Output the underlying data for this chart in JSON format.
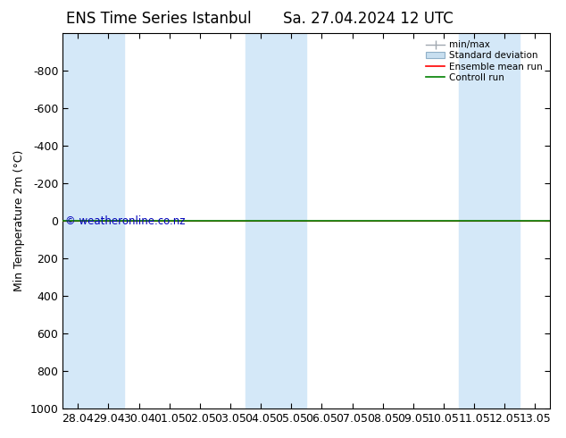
{
  "title": "ENS Time Series Istanbul",
  "title2": "Sa. 27.04.2024 12 UTC",
  "ylabel": "Min Temperature 2m (°C)",
  "ylim": [
    1000,
    -1000
  ],
  "yticks": [
    1000,
    800,
    600,
    400,
    200,
    0,
    -200,
    -400,
    -600,
    -800
  ],
  "ytick_labels": [
    1000,
    800,
    600,
    400,
    200,
    0,
    -200,
    -400,
    -600,
    -800
  ],
  "x_labels": [
    "28.04",
    "29.04",
    "30.04",
    "01.05",
    "02.05",
    "03.05",
    "04.05",
    "05.05",
    "06.05",
    "07.05",
    "08.05",
    "09.05",
    "10.05",
    "11.05",
    "12.05",
    "13.05"
  ],
  "shaded_cols": [
    0,
    1,
    6,
    7,
    13,
    14
  ],
  "bg_color": "#ffffff",
  "shade_color": "#d4e8f8",
  "green_line_y": 0,
  "legend_labels": [
    "min/max",
    "Standard deviation",
    "Ensemble mean run",
    "Controll run"
  ],
  "legend_colors": [
    "#a0b8c8",
    "#c0d8e8",
    "#ff0000",
    "#008000"
  ],
  "watermark": "© weatheronline.co.nz",
  "watermark_color": "#0000bb",
  "title_fontsize": 12,
  "axis_fontsize": 9,
  "tick_fontsize": 9
}
